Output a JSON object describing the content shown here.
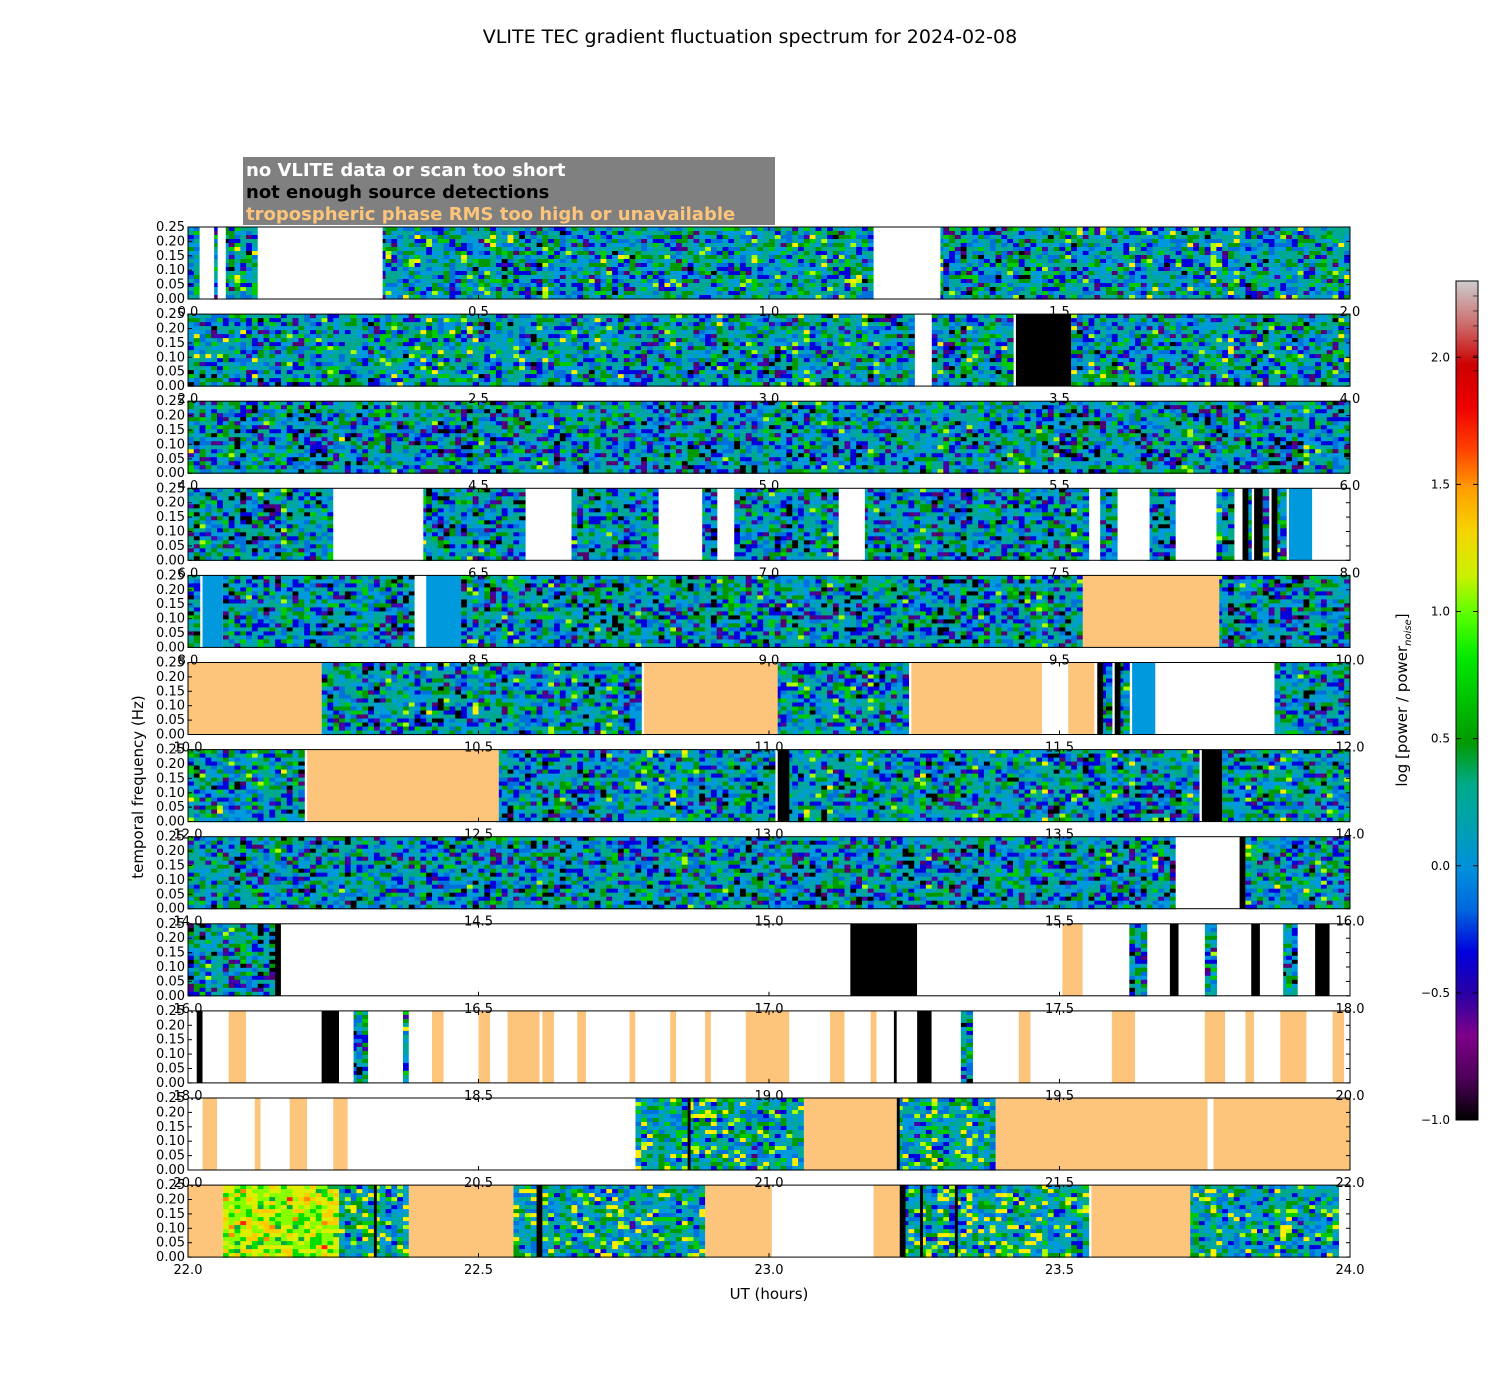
{
  "chart_data": {
    "type": "heatmap",
    "title": "VLITE TEC gradient fluctuation spectrum for 2024-02-08",
    "xlabel": "UT (hours)",
    "ylabel": "temporal frequency (Hz)",
    "ylim": [
      0,
      0.25
    ],
    "yticks": [
      "0.00",
      "0.05",
      "0.10",
      "0.15",
      "0.20",
      "0.25"
    ],
    "grid": false,
    "legend": {
      "placement": "top-left",
      "entries": [
        {
          "label": "no VLITE data or scan too short",
          "color": "#ffffff"
        },
        {
          "label": "not enough source detections",
          "color": "#000000"
        },
        {
          "label": "tropospheric phase RMS too high or unavailable",
          "color": "#fdc47c"
        }
      ]
    },
    "colorbar": {
      "label": "log [power / power_noise]",
      "label_main": "log [power / power",
      "label_sub": "noise",
      "label_end": "]",
      "range": [
        -1.0,
        2.3
      ],
      "ticks": [
        "−1.0",
        "−0.5",
        "0.0",
        "0.5",
        "1.0",
        "1.5",
        "2.0"
      ],
      "tick_values": [
        -1.0,
        -0.5,
        0.0,
        0.5,
        1.0,
        1.5,
        2.0
      ],
      "colormap": "nipy_spectral"
    },
    "rows": [
      {
        "range": [
          0,
          2
        ],
        "xticks": [
          "0.0",
          "0.5",
          "1.0",
          "1.5",
          "2.0"
        ],
        "intensity": 0.1,
        "segments": [
          [
            0.0,
            0.02,
            "d"
          ],
          [
            0.02,
            0.045,
            "w"
          ],
          [
            0.045,
            0.055,
            "d"
          ],
          [
            0.055,
            0.065,
            "w"
          ],
          [
            0.065,
            0.12,
            "d"
          ],
          [
            0.12,
            0.335,
            "w"
          ],
          [
            0.335,
            1.18,
            "d"
          ],
          [
            1.18,
            1.295,
            "w"
          ],
          [
            1.295,
            2.0,
            "d"
          ]
        ]
      },
      {
        "range": [
          2,
          4
        ],
        "xticks": [
          "2.0",
          "2.5",
          "3.0",
          "3.5",
          "4.0"
        ],
        "intensity": 0.1,
        "segments": [
          [
            2.0,
            3.255,
            "d"
          ],
          [
            3.255,
            3.28,
            "w"
          ],
          [
            3.28,
            3.425,
            "d"
          ],
          [
            3.425,
            3.52,
            "b"
          ],
          [
            3.52,
            4.0,
            "d"
          ]
        ]
      },
      {
        "range": [
          4,
          6
        ],
        "xticks": [
          "4.0",
          "4.5",
          "5.0",
          "5.5",
          "6.0"
        ],
        "intensity": 0.0,
        "segments": [
          [
            4.0,
            6.0,
            "d"
          ]
        ]
      },
      {
        "range": [
          6,
          8
        ],
        "xticks": [
          "6.0",
          "6.5",
          "7.0",
          "7.5",
          "8.0"
        ],
        "intensity": 0.0,
        "segments": [
          [
            6.0,
            6.25,
            "d"
          ],
          [
            6.25,
            6.405,
            "w"
          ],
          [
            6.405,
            6.585,
            "d"
          ],
          [
            6.585,
            6.66,
            "w"
          ],
          [
            6.66,
            6.81,
            "d"
          ],
          [
            6.81,
            6.885,
            "w"
          ],
          [
            6.885,
            6.915,
            "d"
          ],
          [
            6.915,
            6.94,
            "w"
          ],
          [
            6.94,
            7.12,
            "d"
          ],
          [
            7.12,
            7.165,
            "w"
          ],
          [
            7.165,
            7.555,
            "d"
          ],
          [
            7.555,
            7.565,
            "w"
          ],
          [
            7.565,
            7.6,
            "d"
          ],
          [
            7.6,
            7.655,
            "w"
          ],
          [
            7.655,
            7.7,
            "d"
          ],
          [
            7.7,
            7.77,
            "w"
          ],
          [
            7.77,
            7.805,
            "d"
          ],
          [
            7.805,
            7.815,
            "w"
          ],
          [
            7.815,
            7.825,
            "b"
          ],
          [
            7.825,
            7.835,
            "d"
          ],
          [
            7.835,
            7.85,
            "b"
          ],
          [
            7.85,
            7.865,
            "d"
          ],
          [
            7.865,
            7.875,
            "b"
          ],
          [
            7.875,
            7.895,
            "d"
          ],
          [
            7.895,
            7.935,
            "n"
          ],
          [
            7.935,
            8.0,
            "w"
          ]
        ]
      },
      {
        "range": [
          8,
          10
        ],
        "xticks": [
          "8.0",
          "8.5",
          "9.0",
          "9.5",
          "10.0"
        ],
        "intensity": 0.0,
        "segments": [
          [
            8.0,
            8.025,
            "d"
          ],
          [
            8.025,
            8.06,
            "n"
          ],
          [
            8.06,
            8.39,
            "d"
          ],
          [
            8.39,
            8.41,
            "w"
          ],
          [
            8.41,
            8.47,
            "n"
          ],
          [
            8.47,
            9.54,
            "d"
          ],
          [
            9.54,
            9.775,
            "o"
          ],
          [
            9.775,
            10.0,
            "d"
          ]
        ]
      },
      {
        "range": [
          10,
          12
        ],
        "xticks": [
          "10.0",
          "10.5",
          "11.0",
          "11.5",
          "12.0"
        ],
        "intensity": 0.05,
        "segments": [
          [
            10.0,
            10.23,
            "o"
          ],
          [
            10.23,
            10.785,
            "d"
          ],
          [
            10.785,
            11.015,
            "o"
          ],
          [
            11.015,
            11.245,
            "d"
          ],
          [
            11.245,
            11.47,
            "o"
          ],
          [
            11.47,
            11.515,
            "w"
          ],
          [
            11.515,
            11.56,
            "o"
          ],
          [
            11.56,
            11.565,
            "d"
          ],
          [
            11.565,
            11.575,
            "b"
          ],
          [
            11.575,
            11.595,
            "d"
          ],
          [
            11.595,
            11.605,
            "b"
          ],
          [
            11.605,
            11.625,
            "d"
          ],
          [
            11.625,
            11.665,
            "n"
          ],
          [
            11.665,
            11.87,
            "w"
          ],
          [
            11.87,
            12.0,
            "d"
          ]
        ]
      },
      {
        "range": [
          12,
          14
        ],
        "xticks": [
          "12.0",
          "12.5",
          "13.0",
          "13.5",
          "14.0"
        ],
        "intensity": 0.05,
        "segments": [
          [
            12.0,
            12.205,
            "d"
          ],
          [
            12.205,
            12.535,
            "o"
          ],
          [
            12.535,
            13.015,
            "d"
          ],
          [
            13.015,
            13.035,
            "b"
          ],
          [
            13.035,
            13.745,
            "d"
          ],
          [
            13.745,
            13.78,
            "b"
          ],
          [
            13.78,
            14.0,
            "d"
          ]
        ]
      },
      {
        "range": [
          14,
          16
        ],
        "xticks": [
          "14.0",
          "14.5",
          "15.0",
          "15.5",
          "16.0"
        ],
        "intensity": 0.0,
        "segments": [
          [
            14.0,
            15.7,
            "d"
          ],
          [
            15.7,
            15.81,
            "w"
          ],
          [
            15.81,
            15.82,
            "b"
          ],
          [
            15.82,
            16.0,
            "d"
          ]
        ]
      },
      {
        "range": [
          16,
          18
        ],
        "xticks": [
          "16.0",
          "16.5",
          "17.0",
          "17.5",
          "18.0"
        ],
        "intensity": 0.0,
        "segments": [
          [
            16.0,
            16.15,
            "d"
          ],
          [
            16.15,
            16.16,
            "b"
          ],
          [
            16.16,
            17.14,
            "w"
          ],
          [
            17.14,
            17.255,
            "b"
          ],
          [
            17.255,
            17.505,
            "w"
          ],
          [
            17.505,
            17.54,
            "o"
          ],
          [
            17.54,
            17.62,
            "w"
          ],
          [
            17.62,
            17.655,
            "d"
          ],
          [
            17.655,
            17.69,
            "w"
          ],
          [
            17.69,
            17.705,
            "b"
          ],
          [
            17.705,
            17.75,
            "w"
          ],
          [
            17.75,
            17.775,
            "d"
          ],
          [
            17.775,
            17.83,
            "w"
          ],
          [
            17.83,
            17.845,
            "b"
          ],
          [
            17.845,
            17.885,
            "w"
          ],
          [
            17.885,
            17.91,
            "d"
          ],
          [
            17.91,
            17.94,
            "w"
          ],
          [
            17.94,
            17.965,
            "b"
          ],
          [
            17.965,
            18.0,
            "w"
          ]
        ]
      },
      {
        "range": [
          18,
          20
        ],
        "xticks": [
          "18.0",
          "18.5",
          "19.0",
          "19.5",
          "20.0"
        ],
        "intensity": 0.0,
        "segments": [
          [
            18.0,
            18.015,
            "w"
          ],
          [
            18.015,
            18.025,
            "b"
          ],
          [
            18.025,
            18.07,
            "w"
          ],
          [
            18.07,
            18.1,
            "o"
          ],
          [
            18.1,
            18.23,
            "w"
          ],
          [
            18.23,
            18.26,
            "b"
          ],
          [
            18.26,
            18.285,
            "w"
          ],
          [
            18.285,
            18.31,
            "d"
          ],
          [
            18.31,
            18.37,
            "w"
          ],
          [
            18.37,
            18.38,
            "d"
          ],
          [
            18.38,
            18.42,
            "w"
          ],
          [
            18.42,
            18.44,
            "o"
          ],
          [
            18.44,
            18.5,
            "w"
          ],
          [
            18.5,
            18.52,
            "o"
          ],
          [
            18.52,
            18.55,
            "w"
          ],
          [
            18.55,
            18.605,
            "o"
          ],
          [
            18.605,
            18.61,
            "w"
          ],
          [
            18.61,
            18.63,
            "o"
          ],
          [
            18.63,
            18.67,
            "w"
          ],
          [
            18.67,
            18.685,
            "o"
          ],
          [
            18.685,
            18.76,
            "w"
          ],
          [
            18.76,
            18.77,
            "o"
          ],
          [
            18.77,
            18.83,
            "w"
          ],
          [
            18.83,
            18.84,
            "o"
          ],
          [
            18.84,
            18.89,
            "w"
          ],
          [
            18.89,
            18.9,
            "o"
          ],
          [
            18.9,
            18.96,
            "w"
          ],
          [
            18.96,
            19.035,
            "o"
          ],
          [
            19.035,
            19.105,
            "w"
          ],
          [
            19.105,
            19.13,
            "o"
          ],
          [
            19.13,
            19.175,
            "w"
          ],
          [
            19.175,
            19.185,
            "o"
          ],
          [
            19.185,
            19.215,
            "w"
          ],
          [
            19.215,
            19.22,
            "b"
          ],
          [
            19.22,
            19.255,
            "w"
          ],
          [
            19.255,
            19.28,
            "b"
          ],
          [
            19.28,
            19.33,
            "w"
          ],
          [
            19.33,
            19.355,
            "d"
          ],
          [
            19.355,
            19.43,
            "w"
          ],
          [
            19.43,
            19.45,
            "o"
          ],
          [
            19.45,
            19.59,
            "w"
          ],
          [
            19.59,
            19.63,
            "o"
          ],
          [
            19.63,
            19.75,
            "w"
          ],
          [
            19.75,
            19.785,
            "o"
          ],
          [
            19.785,
            19.82,
            "w"
          ],
          [
            19.82,
            19.835,
            "o"
          ],
          [
            19.835,
            19.88,
            "w"
          ],
          [
            19.88,
            19.925,
            "o"
          ],
          [
            19.925,
            19.97,
            "w"
          ],
          [
            19.97,
            19.99,
            "o"
          ],
          [
            19.99,
            20.0,
            "w"
          ]
        ]
      },
      {
        "range": [
          20,
          22
        ],
        "xticks": [
          "20.0",
          "20.5",
          "21.0",
          "21.5",
          "22.0"
        ],
        "intensity": 0.3,
        "segments": [
          [
            20.0,
            20.025,
            "w"
          ],
          [
            20.025,
            20.05,
            "o"
          ],
          [
            20.05,
            20.115,
            "w"
          ],
          [
            20.115,
            20.125,
            "o"
          ],
          [
            20.125,
            20.175,
            "w"
          ],
          [
            20.175,
            20.205,
            "o"
          ],
          [
            20.205,
            20.25,
            "w"
          ],
          [
            20.25,
            20.275,
            "o"
          ],
          [
            20.275,
            20.77,
            "w"
          ],
          [
            20.77,
            20.86,
            "d"
          ],
          [
            20.86,
            20.865,
            "b"
          ],
          [
            20.865,
            21.06,
            "d"
          ],
          [
            21.06,
            21.22,
            "o"
          ],
          [
            21.22,
            21.225,
            "b"
          ],
          [
            21.225,
            21.39,
            "d"
          ],
          [
            21.39,
            21.755,
            "o"
          ],
          [
            21.755,
            21.765,
            "w"
          ],
          [
            21.765,
            22.0,
            "o"
          ]
        ]
      },
      {
        "range": [
          22,
          24
        ],
        "xticks": [
          "22.0",
          "22.5",
          "23.0",
          "23.5",
          "24.0"
        ],
        "intensity": 0.3,
        "segments": [
          [
            22.0,
            22.06,
            "o"
          ],
          [
            22.06,
            22.265,
            "h"
          ],
          [
            22.265,
            22.32,
            "d"
          ],
          [
            22.32,
            22.325,
            "b"
          ],
          [
            22.325,
            22.38,
            "d"
          ],
          [
            22.38,
            22.56,
            "o"
          ],
          [
            22.56,
            22.6,
            "d"
          ],
          [
            22.6,
            22.61,
            "b"
          ],
          [
            22.61,
            22.89,
            "d"
          ],
          [
            22.89,
            23.005,
            "o"
          ],
          [
            23.005,
            23.18,
            "w"
          ],
          [
            23.18,
            23.225,
            "o"
          ],
          [
            23.225,
            23.235,
            "b"
          ],
          [
            23.235,
            23.26,
            "d"
          ],
          [
            23.26,
            23.265,
            "b"
          ],
          [
            23.265,
            23.32,
            "d"
          ],
          [
            23.32,
            23.325,
            "b"
          ],
          [
            23.325,
            23.555,
            "d"
          ],
          [
            23.555,
            23.725,
            "o"
          ],
          [
            23.725,
            23.985,
            "d"
          ],
          [
            23.985,
            24.0,
            "w"
          ]
        ]
      }
    ]
  }
}
